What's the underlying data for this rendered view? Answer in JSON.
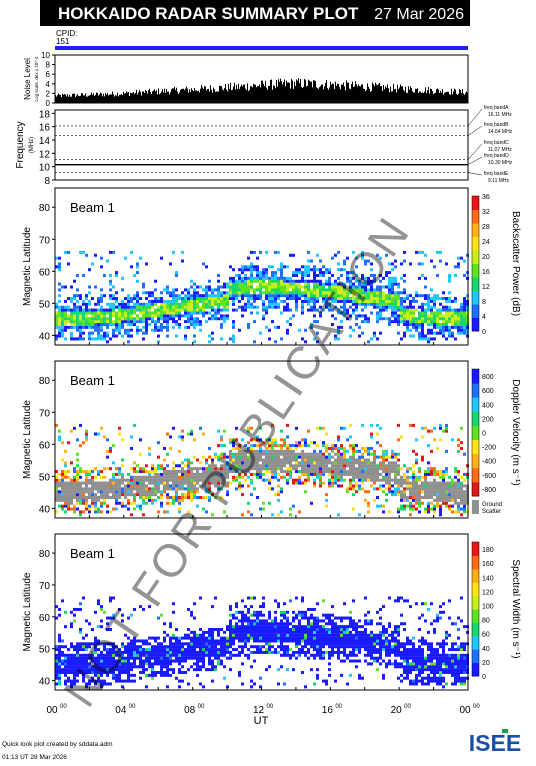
{
  "header": {
    "title": "HOKKAIDO RADAR SUMMARY PLOT",
    "date": "27 Mar 2026",
    "cpid_label": "CPID:",
    "cpid_value": "151"
  },
  "watermark": "NOT FOR PUBLICATION",
  "footer": {
    "credit": "Quick look plot created by sddata.adm",
    "timestamp": "01:13 UT 28 Mar 2026",
    "logo_text": "ISEE"
  },
  "colors": {
    "accent_blue": "#2020ff",
    "ground_scatter": "#909090",
    "noise_bars": "#000000"
  },
  "chart_data": [
    {
      "type": "bar",
      "name": "noise-level",
      "ylabel": "Noise Level",
      "ylabel_sub": "Log scale, dex x 10^-4",
      "ylim": [
        0,
        10
      ],
      "yticks": [
        0,
        2,
        4,
        6,
        8,
        10
      ],
      "x_hours": [
        0,
        2,
        4,
        6,
        8,
        10,
        12,
        14,
        16,
        18,
        20,
        22,
        24
      ],
      "values": [
        1.5,
        1.7,
        2.0,
        2.4,
        2.8,
        3.2,
        3.7,
        4.1,
        3.8,
        3.4,
        3.0,
        2.6,
        2.2
      ]
    },
    {
      "type": "line",
      "name": "frequency",
      "ylabel": "Frequency",
      "ylabel_sub": "(MHz)",
      "ylim": [
        8,
        18.5
      ],
      "yticks": [
        8,
        10,
        12,
        14,
        16,
        18
      ],
      "bands": [
        {
          "label": "freq bandA",
          "value_label": "16.11 MHz",
          "freq": 16.11
        },
        {
          "label": "freq bandB",
          "value_label": "14.64 MHz",
          "freq": 14.64
        },
        {
          "label": "freq bandC",
          "value_label": "11.07 MHz",
          "freq": 11.07
        },
        {
          "label": "freq bandD",
          "value_label": "10.30 MHz",
          "freq": 10.3
        },
        {
          "label": "freq bandE",
          "value_label": "9.11 MHz",
          "freq": 9.11
        }
      ],
      "operating_freq_mhz": 10.3
    },
    {
      "type": "heatmap",
      "name": "power",
      "beam_label": "Beam  1",
      "ylabel": "Magnetic Latitude",
      "ylim": [
        37,
        86
      ],
      "yticks": [
        40,
        50,
        60,
        70,
        80
      ],
      "colorbar_title": "Backscatter Power (dB)",
      "colorbar_ticks": [
        0,
        4,
        8,
        12,
        16,
        20,
        24,
        28,
        32,
        36
      ],
      "colorbar_range": [
        0,
        36
      ],
      "colorbar_colors": [
        "#1a1aff",
        "#1f6fff",
        "#21c6ff",
        "#18d66a",
        "#5fe024",
        "#c8ee1c",
        "#ffe21a",
        "#ffb018",
        "#ff6a18",
        "#e81818"
      ]
    },
    {
      "type": "heatmap",
      "name": "velocity",
      "beam_label": "Beam  1",
      "ylabel": "Magnetic Latitude",
      "ylim": [
        37,
        86
      ],
      "yticks": [
        40,
        50,
        60,
        70,
        80
      ],
      "colorbar_title": "Doppler Velocity (m s⁻¹)",
      "colorbar_ticks": [
        -800,
        -600,
        -400,
        -200,
        0,
        200,
        400,
        600,
        800
      ],
      "colorbar_range": [
        -900,
        900
      ],
      "colorbar_colors": [
        "#e01818",
        "#ff6a18",
        "#ffb018",
        "#ffe21a",
        "#5fe024",
        "#18d66a",
        "#21c6ff",
        "#1f6fff",
        "#1a1aff"
      ],
      "ground_scatter_label": "Ground",
      "ground_scatter_label2": "Scatter"
    },
    {
      "type": "heatmap",
      "name": "width",
      "beam_label": "Beam  1",
      "ylabel": "Magnetic Latitude",
      "ylim": [
        37,
        86
      ],
      "yticks": [
        40,
        50,
        60,
        70,
        80
      ],
      "colorbar_title": "Spectral Width (m s⁻¹)",
      "colorbar_ticks": [
        0,
        20,
        40,
        60,
        80,
        100,
        120,
        140,
        160,
        180
      ],
      "colorbar_range": [
        0,
        190
      ],
      "colorbar_colors": [
        "#1a1aff",
        "#1f6fff",
        "#21c6ff",
        "#18d66a",
        "#5fe024",
        "#c8ee1c",
        "#ffe21a",
        "#ffb018",
        "#ff6a18",
        "#e81818"
      ],
      "xlabel": "UT",
      "xticks": [
        "00",
        "04",
        "08",
        "12",
        "16",
        "20",
        "00"
      ],
      "xtick_suffix": "00"
    }
  ]
}
